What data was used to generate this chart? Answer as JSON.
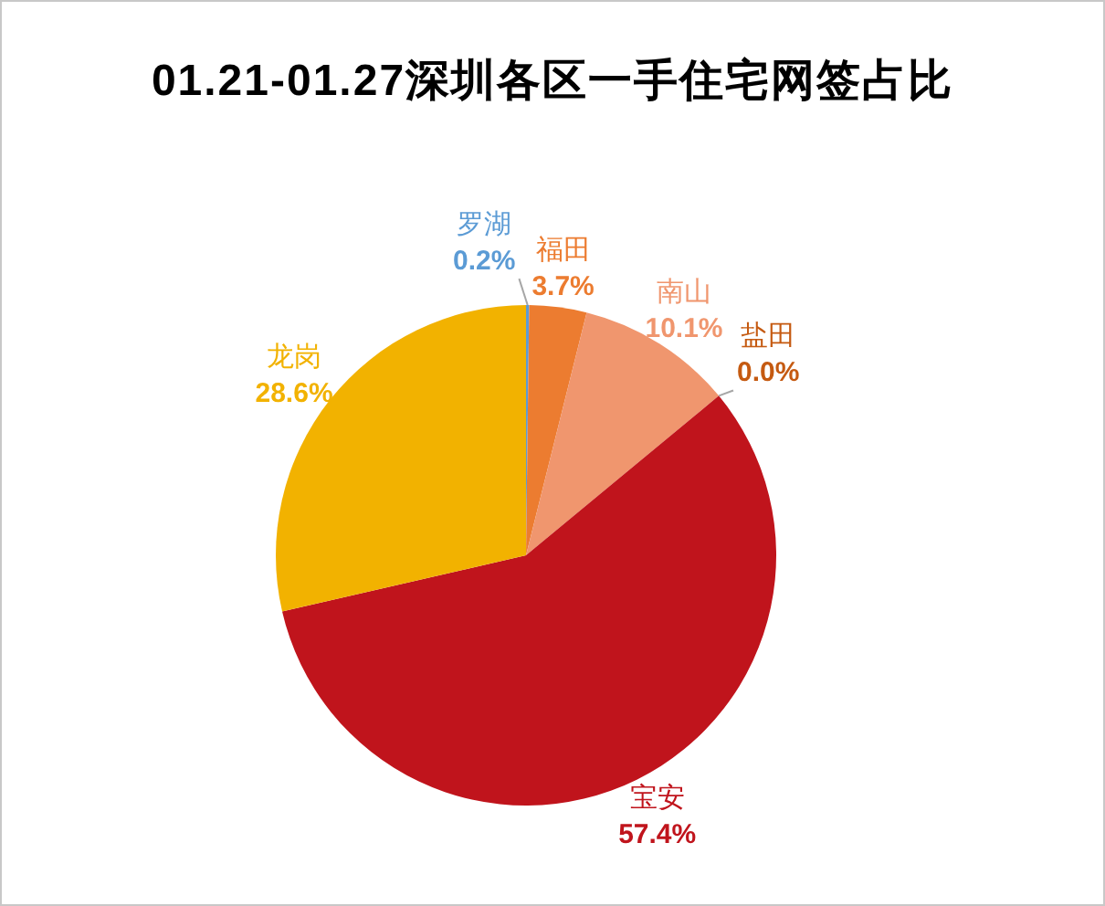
{
  "chart_data": {
    "type": "pie",
    "title": "01.21-01.27深圳各区一手住宅网签占比",
    "categories": [
      "罗湖",
      "福田",
      "南山",
      "盐田",
      "宝安",
      "龙岗"
    ],
    "values": [
      0.2,
      3.7,
      10.1,
      0.0,
      57.4,
      28.6
    ],
    "colors": [
      "#5b9bd5",
      "#ec7c30",
      "#f0966e",
      "#c55a11",
      "#c0141c",
      "#f2b200"
    ],
    "value_labels": [
      "0.2%",
      "3.7%",
      "10.1%",
      "0.0%",
      "57.4%",
      "28.6%"
    ]
  }
}
